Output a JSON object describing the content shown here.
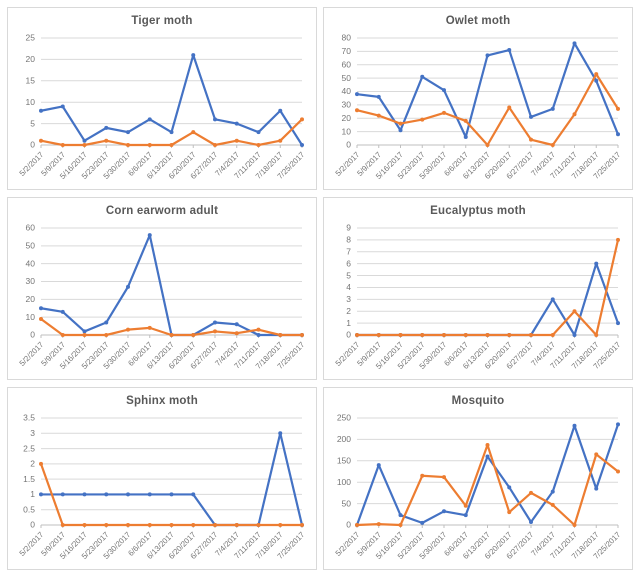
{
  "page": {
    "background": "#ffffff",
    "panel_border": "#d9d9d9"
  },
  "colors": {
    "series1": "#4472C4",
    "series2": "#ED7D31",
    "gridline": "#D9D9D9",
    "axis": "#BFBFBF",
    "tick_text": "#757575",
    "title_text": "#595959"
  },
  "chart_data": [
    {
      "type": "line",
      "title": "Tiger moth",
      "categories": [
        "5/2/2017",
        "5/9/2017",
        "5/16/2017",
        "5/23/2017",
        "5/30/2017",
        "6/6/2017",
        "6/13/2017",
        "6/20/2017",
        "6/27/2017",
        "7/4/2017",
        "7/11/2017",
        "7/18/2017",
        "7/25/2017"
      ],
      "series": [
        {
          "name": "series1",
          "color": "#4472C4",
          "values": [
            8,
            9,
            1,
            4,
            3,
            6,
            3,
            21,
            6,
            5,
            3,
            8,
            0
          ]
        },
        {
          "name": "series2",
          "color": "#ED7D31",
          "values": [
            1,
            0,
            0,
            1,
            0,
            0,
            0,
            3,
            0,
            1,
            0,
            1,
            6
          ]
        }
      ],
      "ylim": [
        0,
        25
      ],
      "ytick_step": 5,
      "grid": true,
      "legend": "none",
      "xlabel": "",
      "ylabel": ""
    },
    {
      "type": "line",
      "title": "Owlet moth",
      "categories": [
        "5/2/2017",
        "5/9/2017",
        "5/16/2017",
        "5/23/2017",
        "5/30/2017",
        "6/6/2017",
        "6/13/2017",
        "6/20/2017",
        "6/27/2017",
        "7/4/2017",
        "7/11/2017",
        "7/18/2017",
        "7/25/2017"
      ],
      "series": [
        {
          "name": "series1",
          "color": "#4472C4",
          "values": [
            38,
            36,
            11,
            51,
            41,
            6,
            67,
            71,
            21,
            27,
            76,
            48,
            8
          ]
        },
        {
          "name": "series2",
          "color": "#ED7D31",
          "values": [
            26,
            22,
            16,
            19,
            24,
            18,
            0,
            28,
            4,
            0,
            23,
            53,
            27
          ]
        }
      ],
      "ylim": [
        0,
        80
      ],
      "ytick_step": 10,
      "grid": true,
      "legend": "none",
      "xlabel": "",
      "ylabel": ""
    },
    {
      "type": "line",
      "title": "Corn earworm adult",
      "categories": [
        "5/2/2017",
        "5/9/2017",
        "5/16/2017",
        "5/23/2017",
        "5/30/2017",
        "6/6/2017",
        "6/13/2017",
        "6/20/2017",
        "6/27/2017",
        "7/4/2017",
        "7/11/2017",
        "7/18/2017",
        "7/25/2017"
      ],
      "series": [
        {
          "name": "series1",
          "color": "#4472C4",
          "values": [
            15,
            13,
            2,
            7,
            27,
            56,
            0,
            0,
            7,
            6,
            0,
            0,
            0
          ]
        },
        {
          "name": "series2",
          "color": "#ED7D31",
          "values": [
            9,
            0,
            0,
            0,
            3,
            4,
            0,
            0,
            2,
            1,
            3,
            0,
            0
          ]
        }
      ],
      "ylim": [
        0,
        60
      ],
      "ytick_step": 10,
      "grid": true,
      "legend": "none",
      "xlabel": "",
      "ylabel": ""
    },
    {
      "type": "line",
      "title": "Eucalyptus moth",
      "categories": [
        "5/2/2017",
        "5/9/2017",
        "5/16/2017",
        "5/23/2017",
        "5/30/2017",
        "6/6/2017",
        "6/13/2017",
        "6/20/2017",
        "6/27/2017",
        "7/4/2017",
        "7/11/2017",
        "7/18/2017",
        "7/25/2017"
      ],
      "series": [
        {
          "name": "series1",
          "color": "#4472C4",
          "values": [
            0,
            0,
            0,
            0,
            0,
            0,
            0,
            0,
            0,
            3,
            0,
            6,
            1
          ]
        },
        {
          "name": "series2",
          "color": "#ED7D31",
          "values": [
            0,
            0,
            0,
            0,
            0,
            0,
            0,
            0,
            0,
            0,
            2,
            0,
            8
          ]
        }
      ],
      "ylim": [
        0,
        9
      ],
      "ytick_step": 1,
      "grid": true,
      "legend": "none",
      "xlabel": "",
      "ylabel": ""
    },
    {
      "type": "line",
      "title": "Sphinx moth",
      "categories": [
        "5/2/2017",
        "5/9/2017",
        "5/16/2017",
        "5/23/2017",
        "5/30/2017",
        "6/6/2017",
        "6/13/2017",
        "6/20/2017",
        "6/27/2017",
        "7/4/2017",
        "7/11/2017",
        "7/18/2017",
        "7/25/2017"
      ],
      "series": [
        {
          "name": "series1",
          "color": "#4472C4",
          "values": [
            1,
            1,
            1,
            1,
            1,
            1,
            1,
            1,
            0,
            0,
            0,
            3,
            0
          ]
        },
        {
          "name": "series2",
          "color": "#ED7D31",
          "values": [
            2,
            0,
            0,
            0,
            0,
            0,
            0,
            0,
            0,
            0,
            0,
            0,
            0
          ]
        }
      ],
      "ylim": [
        0,
        3.5
      ],
      "ytick_step": 0.5,
      "grid": true,
      "legend": "none",
      "xlabel": "",
      "ylabel": ""
    },
    {
      "type": "line",
      "title": "Mosquito",
      "categories": [
        "5/2/2017",
        "5/9/2017",
        "5/16/2017",
        "5/23/2017",
        "5/30/2017",
        "6/6/2017",
        "6/13/2017",
        "6/20/2017",
        "6/27/2017",
        "7/4/2017",
        "7/11/2017",
        "7/18/2017",
        "7/25/2017"
      ],
      "series": [
        {
          "name": "series1",
          "color": "#4472C4",
          "values": [
            0,
            140,
            23,
            5,
            32,
            23,
            160,
            88,
            7,
            78,
            232,
            85,
            235
          ]
        },
        {
          "name": "series2",
          "color": "#ED7D31",
          "values": [
            0,
            2,
            0,
            115,
            112,
            45,
            187,
            30,
            75,
            47,
            0,
            165,
            125
          ]
        }
      ],
      "ylim": [
        0,
        250
      ],
      "ytick_step": 50,
      "grid": true,
      "legend": "none",
      "xlabel": "",
      "ylabel": ""
    }
  ]
}
